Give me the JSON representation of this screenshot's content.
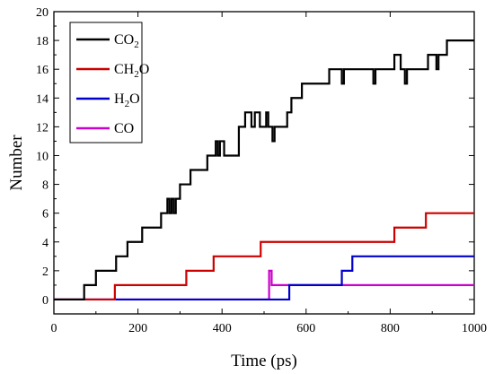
{
  "chart_data": {
    "type": "line",
    "title": "",
    "xlabel": "Time (ps)",
    "ylabel": "Number",
    "xlim": [
      0,
      1000
    ],
    "ylim": [
      -1,
      20
    ],
    "xticks": [
      0,
      200,
      400,
      600,
      800,
      1000
    ],
    "yticks": [
      0,
      2,
      4,
      6,
      8,
      10,
      12,
      14,
      16,
      18,
      20
    ],
    "grid": false,
    "legend_position": "top-left",
    "series": [
      {
        "name": "CO2",
        "label_main": "CO",
        "label_sub": "2",
        "color": "#000000",
        "steps": [
          [
            0,
            0
          ],
          [
            72,
            1
          ],
          [
            100,
            2
          ],
          [
            148,
            3
          ],
          [
            175,
            4
          ],
          [
            210,
            5
          ],
          [
            255,
            6
          ],
          [
            270,
            7
          ],
          [
            275,
            6
          ],
          [
            280,
            7
          ],
          [
            285,
            6
          ],
          [
            290,
            7
          ],
          [
            300,
            8
          ],
          [
            325,
            9
          ],
          [
            365,
            10
          ],
          [
            385,
            11
          ],
          [
            390,
            10
          ],
          [
            395,
            11
          ],
          [
            405,
            10
          ],
          [
            440,
            12
          ],
          [
            455,
            13
          ],
          [
            470,
            12
          ],
          [
            478,
            13
          ],
          [
            490,
            12
          ],
          [
            505,
            13
          ],
          [
            510,
            12
          ],
          [
            520,
            11
          ],
          [
            525,
            12
          ],
          [
            555,
            13
          ],
          [
            565,
            14
          ],
          [
            575,
            14
          ],
          [
            590,
            15
          ],
          [
            655,
            16
          ],
          [
            685,
            15
          ],
          [
            690,
            16
          ],
          [
            760,
            15
          ],
          [
            765,
            16
          ],
          [
            810,
            17
          ],
          [
            825,
            16
          ],
          [
            835,
            15
          ],
          [
            840,
            16
          ],
          [
            890,
            17
          ],
          [
            910,
            16
          ],
          [
            915,
            17
          ],
          [
            935,
            18
          ],
          [
            1000,
            18
          ]
        ]
      },
      {
        "name": "CH2O",
        "label_main": "CH",
        "label_sub": "2",
        "label_tail": "O",
        "color": "#cc0000",
        "steps": [
          [
            0,
            0
          ],
          [
            145,
            1
          ],
          [
            315,
            2
          ],
          [
            380,
            3
          ],
          [
            492,
            4
          ],
          [
            810,
            5
          ],
          [
            885,
            6
          ],
          [
            1000,
            6
          ]
        ]
      },
      {
        "name": "H2O",
        "label_main": "H",
        "label_sub": "2",
        "label_tail": "O",
        "color": "#0000cc",
        "steps": [
          [
            0,
            0
          ],
          [
            560,
            1
          ],
          [
            685,
            2
          ],
          [
            710,
            3
          ],
          [
            1000,
            3
          ]
        ]
      },
      {
        "name": "CO",
        "label_main": "CO",
        "color": "#cc00cc",
        "steps": [
          [
            0,
            0
          ],
          [
            512,
            2
          ],
          [
            518,
            1
          ],
          [
            1000,
            1
          ]
        ]
      }
    ]
  }
}
